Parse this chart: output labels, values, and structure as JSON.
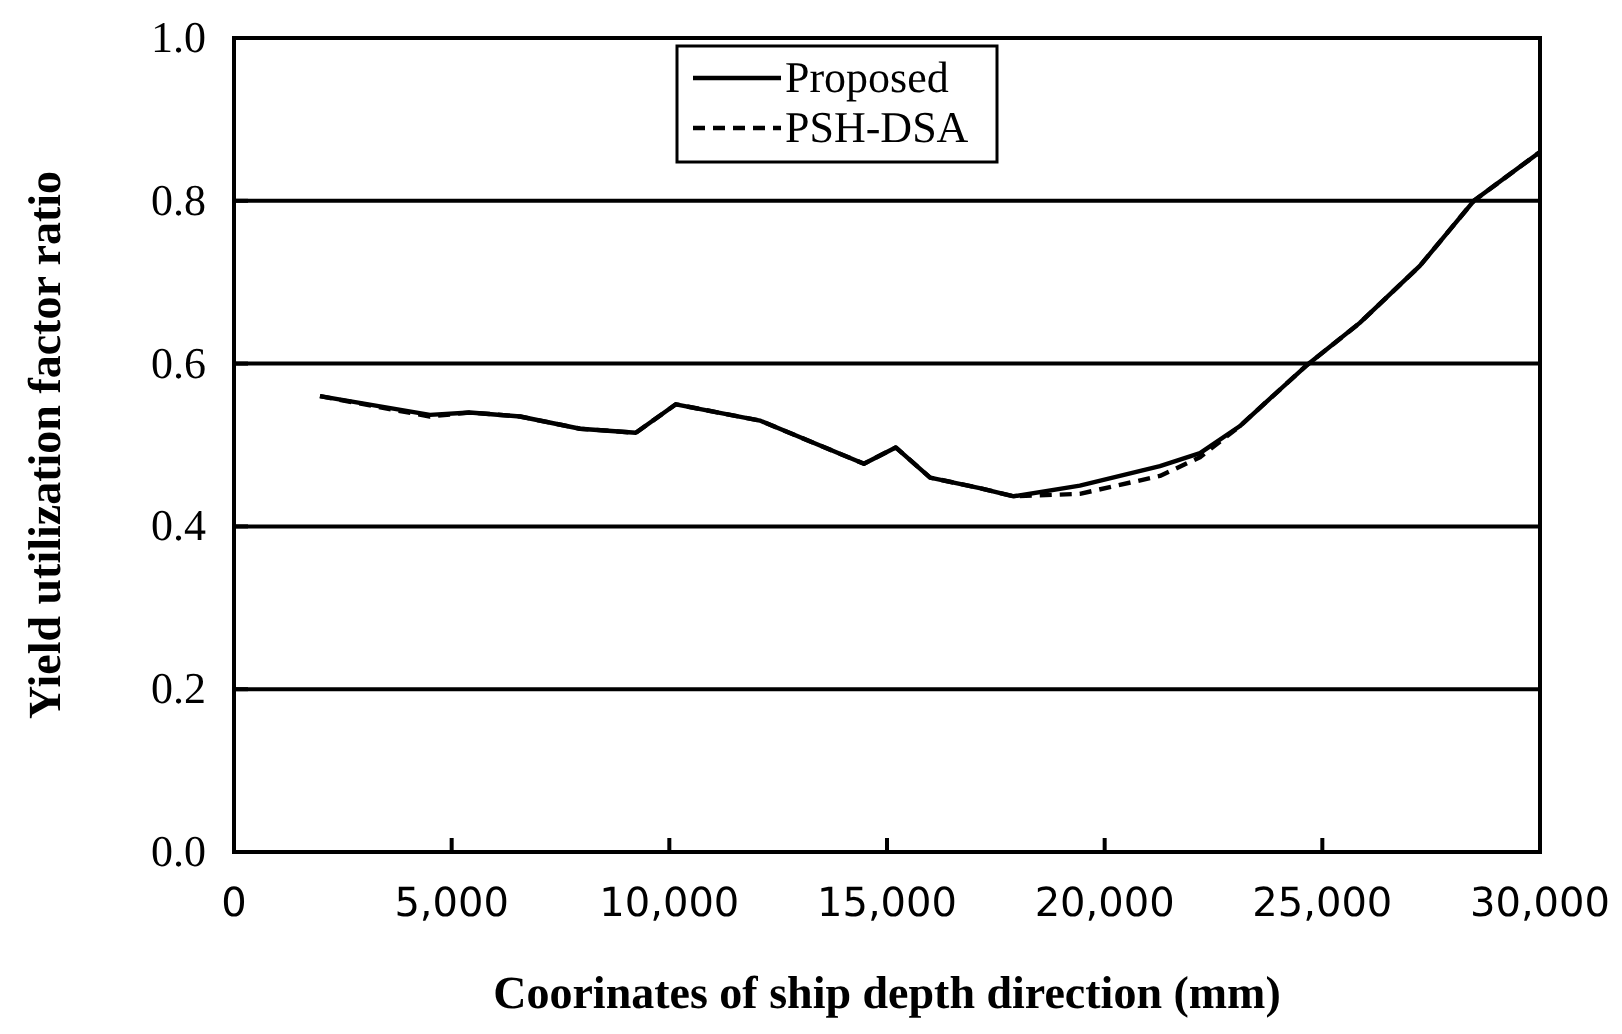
{
  "chart_data": {
    "type": "line",
    "xlabel": "Coorinates of ship depth direction (mm)",
    "ylabel": "Yield utilization factor ratio",
    "xlim": [
      0,
      30000
    ],
    "xticks": [
      {
        "value": 0,
        "label": "0"
      },
      {
        "value": 5000,
        "label": "5,000"
      },
      {
        "value": 10000,
        "label": "10,000"
      },
      {
        "value": 15000,
        "label": "15,000"
      },
      {
        "value": 20000,
        "label": "20,000"
      },
      {
        "value": 25000,
        "label": "25,000"
      },
      {
        "value": 30000,
        "label": "30,000"
      }
    ],
    "ylim": [
      0,
      1
    ],
    "yticks": [
      {
        "value": 0,
        "label": "0.0"
      },
      {
        "value": 0.2,
        "label": "0.2"
      },
      {
        "value": 0.4,
        "label": "0.4"
      },
      {
        "value": 0.6,
        "label": "0.6"
      },
      {
        "value": 0.8,
        "label": "0.8"
      },
      {
        "value": 1,
        "label": "1.0"
      }
    ],
    "grid": "y",
    "legend": "top",
    "marker": "none",
    "series": [
      {
        "name": "Proposed",
        "color": "#000000",
        "line_style": "solid",
        "x": [
          1975,
          4500,
          5420,
          6570,
          7950,
          9230,
          10150,
          12080,
          14470,
          15200,
          15990,
          17130,
          17910,
          19430,
          21270,
          22190,
          23100,
          24620,
          25860,
          27240,
          28480,
          30000
        ],
        "values": [
          0.56,
          0.537,
          0.54,
          0.535,
          0.52,
          0.515,
          0.55,
          0.53,
          0.477,
          0.497,
          0.46,
          0.447,
          0.437,
          0.45,
          0.474,
          0.49,
          0.523,
          0.597,
          0.65,
          0.72,
          0.8,
          0.86
        ]
      },
      {
        "name": "PSH-DSA",
        "color": "#000000",
        "line_style": "dashed",
        "x": [
          1975,
          4500,
          5420,
          6570,
          7950,
          9230,
          10150,
          12080,
          14470,
          15200,
          15990,
          17130,
          17910,
          19430,
          21270,
          22190,
          23100,
          24620,
          25860,
          27240,
          28480,
          30000
        ],
        "values": [
          0.56,
          0.535,
          0.54,
          0.535,
          0.52,
          0.515,
          0.55,
          0.53,
          0.477,
          0.497,
          0.46,
          0.447,
          0.437,
          0.44,
          0.462,
          0.485,
          0.523,
          0.597,
          0.65,
          0.72,
          0.8,
          0.86
        ]
      }
    ]
  }
}
